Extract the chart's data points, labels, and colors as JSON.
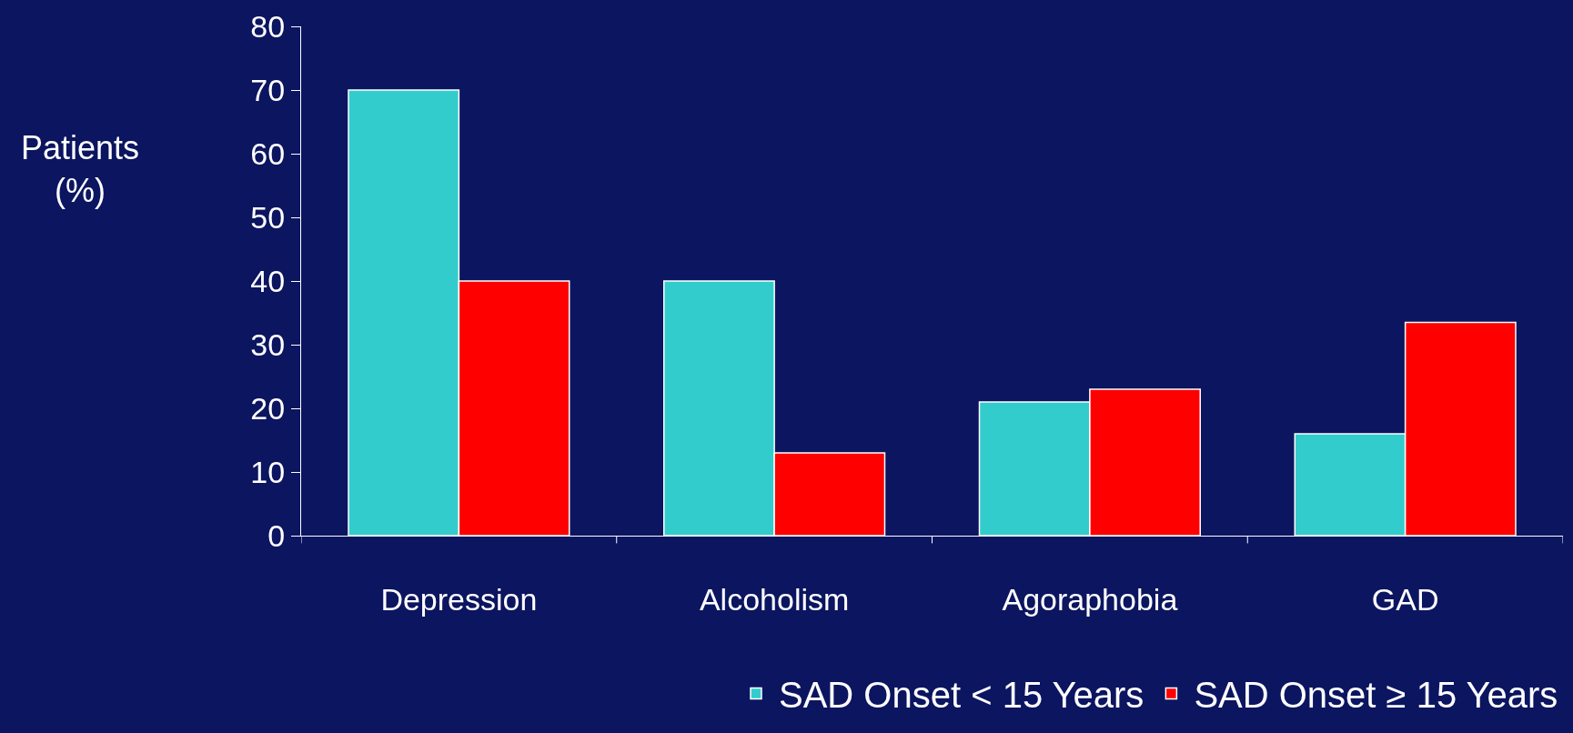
{
  "chart_data": {
    "type": "bar",
    "ylabel": "Patients\n(%)",
    "categories": [
      "Depression",
      "Alcoholism",
      "Agoraphobia",
      "GAD"
    ],
    "series": [
      {
        "name": "SAD Onset < 15 Years",
        "color": "#33cccc",
        "values": [
          70,
          40,
          21,
          16
        ]
      },
      {
        "name": "SAD Onset ≥ 15 Years",
        "color": "#ff0000",
        "values": [
          40,
          13,
          23,
          33.5
        ]
      }
    ],
    "ylim": [
      0,
      80
    ],
    "yticks": [
      0,
      10,
      20,
      30,
      40,
      50,
      60,
      70,
      80
    ],
    "grid": false,
    "legend": "bottom right"
  }
}
